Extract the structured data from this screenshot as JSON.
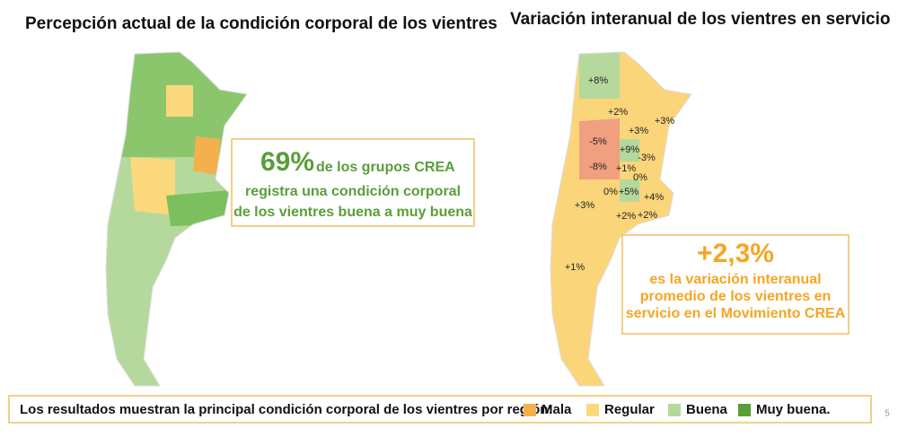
{
  "left_panel": {
    "title": "Percepción actual de la condición corporal de los vientres",
    "callout": {
      "highlight": "69%",
      "first_line": "de los grupos CREA",
      "lines": [
        "registra una condición corporal",
        "de los vientres buena a muy buena"
      ]
    }
  },
  "right_panel": {
    "title": "Variación interanual de los vientres en servicio",
    "region_labels": [
      "+8%",
      "+2%",
      "+3%",
      "+3%",
      "-5%",
      "+9%",
      "-3%",
      "-8%",
      "+1%",
      "0%",
      "0%",
      "+5%",
      "+4%",
      "+3%",
      "+2%",
      "+2%",
      "+1%"
    ],
    "callout": {
      "highlight": "+2,3%",
      "lines": [
        "es la variación interanual",
        "promedio de los vientres en",
        "servicio en el Movimiento CREA"
      ]
    }
  },
  "legend": {
    "text": "Los resultados muestran la principal condición corporal de los vientres por región:",
    "items": [
      {
        "label": "Mala",
        "color": "#f5b04d"
      },
      {
        "label": "Regular",
        "color": "#fbd97c"
      },
      {
        "label": "Buena",
        "color": "#b5d99c"
      },
      {
        "label": "Muy buena.",
        "color": "#5a9e3a"
      }
    ]
  },
  "page_number": "5"
}
